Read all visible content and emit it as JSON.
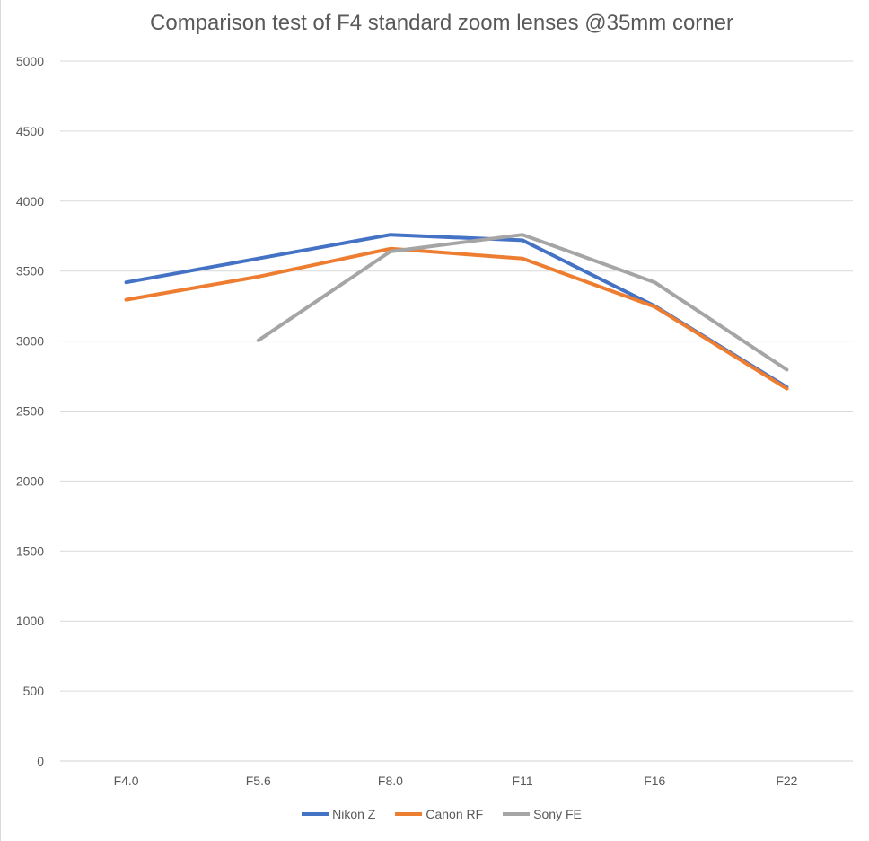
{
  "chart_data": {
    "type": "line",
    "title": "Comparison test of F4 standard zoom lenses @35mm corner",
    "xlabel": "",
    "ylabel": "",
    "categories": [
      "F4.0",
      "F5.6",
      "F8.0",
      "F11",
      "F16",
      "F22"
    ],
    "ylim": [
      0,
      5000
    ],
    "yticks": [
      0,
      500,
      1000,
      1500,
      2000,
      2500,
      3000,
      3500,
      4000,
      4500,
      5000
    ],
    "grid": true,
    "legend_position": "bottom",
    "series": [
      {
        "name": "Nikon Z",
        "color": "#4472c4",
        "values": [
          3420,
          3590,
          3760,
          3720,
          3250,
          2670
        ]
      },
      {
        "name": "Canon RF",
        "color": "#ed7d31",
        "values": [
          3295,
          3460,
          3660,
          3590,
          3245,
          2660
        ]
      },
      {
        "name": "Sony FE",
        "color": "#a5a5a5",
        "values": [
          null,
          3005,
          3640,
          3760,
          3420,
          2795
        ]
      }
    ]
  }
}
